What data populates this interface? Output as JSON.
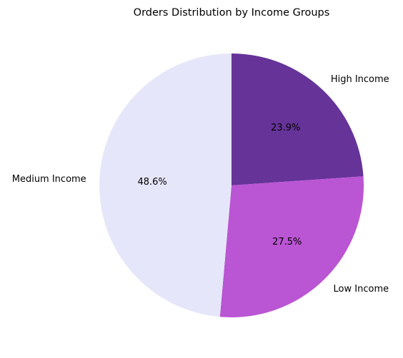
{
  "chart_data": {
    "type": "pie",
    "title": "Orders Distribution by Income Groups",
    "categories": [
      "High Income",
      "Low Income",
      "Medium Income"
    ],
    "values": [
      23.9,
      27.5,
      48.6
    ],
    "value_labels": [
      "23.9%",
      "27.5%",
      "48.6%"
    ],
    "colors": [
      "#663399",
      "#ba55d3",
      "#e6e6fa"
    ],
    "start_angle": 90,
    "direction": "clockwise",
    "legend": "none"
  }
}
